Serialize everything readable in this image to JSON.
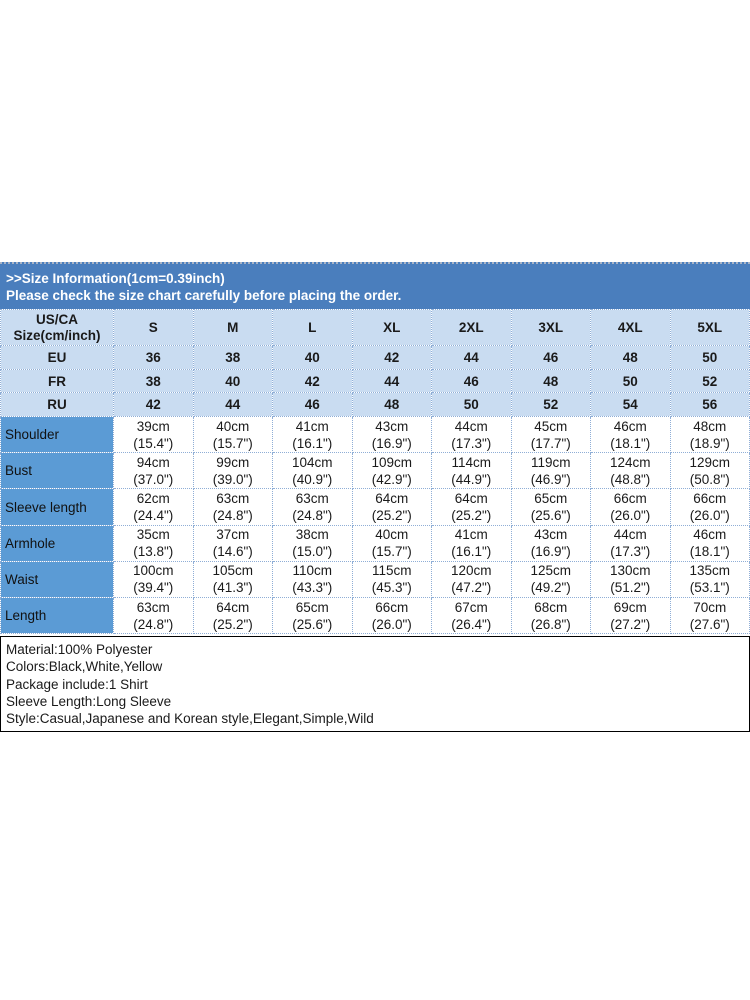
{
  "banner": {
    "title": ">>Size Information(1cm=0.39inch)",
    "subtitle": "Please check the size chart carefully before placing the order."
  },
  "size_table": {
    "corner": {
      "line1": "US/CA",
      "line2": "Size(cm/inch)"
    },
    "sizes": [
      "S",
      "M",
      "L",
      "XL",
      "2XL",
      "3XL",
      "4XL",
      "5XL"
    ],
    "region_rows": [
      {
        "label": "EU",
        "values": [
          "36",
          "38",
          "40",
          "42",
          "44",
          "46",
          "48",
          "50"
        ]
      },
      {
        "label": "FR",
        "values": [
          "38",
          "40",
          "42",
          "44",
          "46",
          "48",
          "50",
          "52"
        ]
      },
      {
        "label": "RU",
        "values": [
          "42",
          "44",
          "46",
          "48",
          "50",
          "52",
          "54",
          "56"
        ]
      }
    ],
    "measurement_rows": [
      {
        "label": "Shoulder",
        "values": [
          {
            "cm": "39cm",
            "inch": "(15.4\")"
          },
          {
            "cm": "40cm",
            "inch": "(15.7\")"
          },
          {
            "cm": "41cm",
            "inch": "(16.1\")"
          },
          {
            "cm": "43cm",
            "inch": "(16.9\")"
          },
          {
            "cm": "44cm",
            "inch": "(17.3\")"
          },
          {
            "cm": "45cm",
            "inch": "(17.7\")"
          },
          {
            "cm": "46cm",
            "inch": "(18.1\")"
          },
          {
            "cm": "48cm",
            "inch": "(18.9\")"
          }
        ]
      },
      {
        "label": "Bust",
        "values": [
          {
            "cm": "94cm",
            "inch": "(37.0\")"
          },
          {
            "cm": "99cm",
            "inch": "(39.0\")"
          },
          {
            "cm": "104cm",
            "inch": "(40.9\")"
          },
          {
            "cm": "109cm",
            "inch": "(42.9\")"
          },
          {
            "cm": "114cm",
            "inch": "(44.9\")"
          },
          {
            "cm": "119cm",
            "inch": "(46.9\")"
          },
          {
            "cm": "124cm",
            "inch": "(48.8\")"
          },
          {
            "cm": "129cm",
            "inch": "(50.8\")"
          }
        ]
      },
      {
        "label": "Sleeve length",
        "values": [
          {
            "cm": "62cm",
            "inch": "(24.4\")"
          },
          {
            "cm": "63cm",
            "inch": "(24.8\")"
          },
          {
            "cm": "63cm",
            "inch": "(24.8\")"
          },
          {
            "cm": "64cm",
            "inch": "(25.2\")"
          },
          {
            "cm": "64cm",
            "inch": "(25.2\")"
          },
          {
            "cm": "65cm",
            "inch": "(25.6\")"
          },
          {
            "cm": "66cm",
            "inch": "(26.0\")"
          },
          {
            "cm": "66cm",
            "inch": "(26.0\")"
          }
        ]
      },
      {
        "label": "Armhole",
        "values": [
          {
            "cm": "35cm",
            "inch": "(13.8\")"
          },
          {
            "cm": "37cm",
            "inch": "(14.6\")"
          },
          {
            "cm": "38cm",
            "inch": "(15.0\")"
          },
          {
            "cm": "40cm",
            "inch": "(15.7\")"
          },
          {
            "cm": "41cm",
            "inch": "(16.1\")"
          },
          {
            "cm": "43cm",
            "inch": "(16.9\")"
          },
          {
            "cm": "44cm",
            "inch": "(17.3\")"
          },
          {
            "cm": "46cm",
            "inch": "(18.1\")"
          }
        ]
      },
      {
        "label": "Waist",
        "values": [
          {
            "cm": "100cm",
            "inch": "(39.4\")"
          },
          {
            "cm": "105cm",
            "inch": "(41.3\")"
          },
          {
            "cm": "110cm",
            "inch": "(43.3\")"
          },
          {
            "cm": "115cm",
            "inch": "(45.3\")"
          },
          {
            "cm": "120cm",
            "inch": "(47.2\")"
          },
          {
            "cm": "125cm",
            "inch": "(49.2\")"
          },
          {
            "cm": "130cm",
            "inch": "(51.2\")"
          },
          {
            "cm": "135cm",
            "inch": "(53.1\")"
          }
        ]
      },
      {
        "label": "Length",
        "values": [
          {
            "cm": "63cm",
            "inch": "(24.8\")"
          },
          {
            "cm": "64cm",
            "inch": "(25.2\")"
          },
          {
            "cm": "65cm",
            "inch": "(25.6\")"
          },
          {
            "cm": "66cm",
            "inch": "(26.0\")"
          },
          {
            "cm": "67cm",
            "inch": "(26.4\")"
          },
          {
            "cm": "68cm",
            "inch": "(26.8\")"
          },
          {
            "cm": "69cm",
            "inch": "(27.2\")"
          },
          {
            "cm": "70cm",
            "inch": "(27.6\")"
          }
        ]
      }
    ]
  },
  "details": {
    "lines": [
      "Material:100% Polyester",
      "Colors:Black,White,Yellow",
      "Package include:1 Shirt",
      "Sleeve Length:Long Sleeve",
      "Style:Casual,Japanese and Korean style,Elegant,Simple,Wild"
    ]
  },
  "colors": {
    "banner_blue": "#4a7ebd",
    "label_blue": "#5b9bd5",
    "light_blue": "#c9dcf1",
    "grid_border": "#8faed6",
    "banner_text": "#ffffff",
    "body_text": "#1a1a1a"
  }
}
